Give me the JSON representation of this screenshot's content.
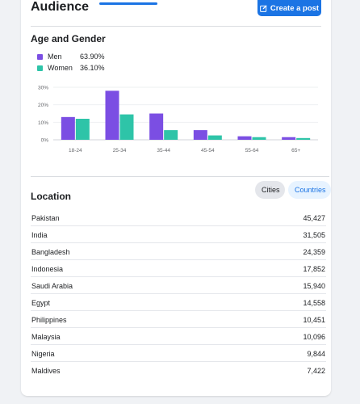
{
  "header": {
    "title": "Audience",
    "create_post_label": "Create a post"
  },
  "age_gender": {
    "title": "Age and Gender",
    "legend": [
      {
        "name": "Men",
        "value": "63.90%",
        "color": "#7b4ee3"
      },
      {
        "name": "Women",
        "value": "36.10%",
        "color": "#2ec4a8"
      }
    ]
  },
  "chart_data": {
    "type": "bar",
    "categories": [
      "18-24",
      "25-34",
      "35-44",
      "45-54",
      "55-64",
      "65+"
    ],
    "series": [
      {
        "name": "Men",
        "values": [
          13,
          28,
          15,
          5.5,
          2,
          1.5
        ],
        "color": "#7b4ee3"
      },
      {
        "name": "Women",
        "values": [
          12,
          14.5,
          5.5,
          2.5,
          1.5,
          1
        ],
        "color": "#2ec4a8"
      }
    ],
    "yticks": [
      "0%",
      "10%",
      "20%",
      "30%"
    ],
    "ylim": [
      0,
      30
    ],
    "grid": true
  },
  "location": {
    "title": "Location",
    "tabs": [
      {
        "label": "Cities",
        "active": false
      },
      {
        "label": "Countries",
        "active": true
      }
    ],
    "rows": [
      {
        "name": "Pakistan",
        "value": "45,427"
      },
      {
        "name": "India",
        "value": "31,505"
      },
      {
        "name": "Bangladesh",
        "value": "24,359"
      },
      {
        "name": "Indonesia",
        "value": "17,852"
      },
      {
        "name": "Saudi Arabia",
        "value": "15,940"
      },
      {
        "name": "Egypt",
        "value": "14,558"
      },
      {
        "name": "Philippines",
        "value": "10,451"
      },
      {
        "name": "Malaysia",
        "value": "10,096"
      },
      {
        "name": "Nigeria",
        "value": "9,844"
      },
      {
        "name": "Maldives",
        "value": "7,422"
      }
    ]
  }
}
